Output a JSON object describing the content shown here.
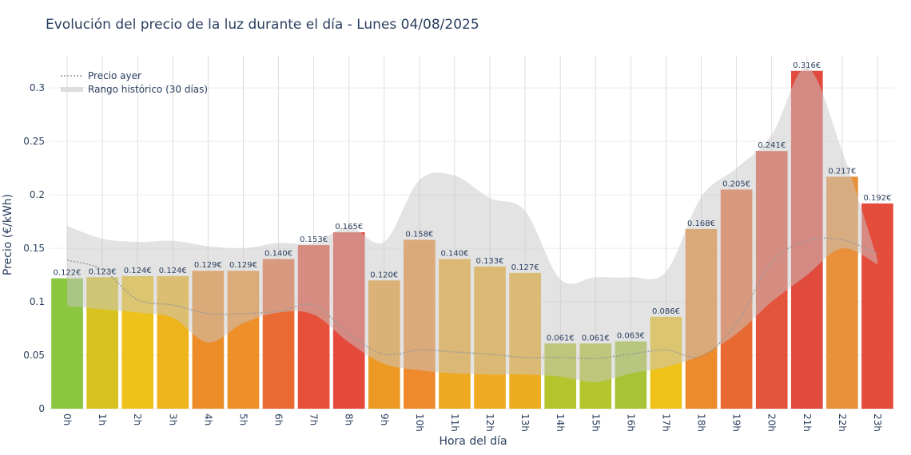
{
  "chart_data": {
    "type": "bar",
    "title": "Evolución del precio de la luz durante el día - Lunes 04/08/2025",
    "xlabel": "Hora del día",
    "ylabel": "Precio (€/kWh)",
    "ylim": [
      0,
      0.33
    ],
    "yticks": [
      "0",
      "0.05",
      "0.1",
      "0.15",
      "0.2",
      "0.25",
      "0.3"
    ],
    "grid": true,
    "legend_position": "top-left",
    "categories": [
      "0h",
      "1h",
      "2h",
      "3h",
      "4h",
      "5h",
      "6h",
      "7h",
      "8h",
      "9h",
      "10h",
      "11h",
      "12h",
      "13h",
      "14h",
      "15h",
      "16h",
      "17h",
      "18h",
      "19h",
      "20h",
      "21h",
      "22h",
      "23h"
    ],
    "values": [
      0.122,
      0.123,
      0.124,
      0.124,
      0.129,
      0.129,
      0.14,
      0.153,
      0.165,
      0.12,
      0.158,
      0.14,
      0.133,
      0.127,
      0.061,
      0.061,
      0.063,
      0.086,
      0.168,
      0.205,
      0.241,
      0.316,
      0.217,
      0.192
    ],
    "bar_labels": [
      "0.122€",
      "0.123€",
      "0.124€",
      "0.124€",
      "0.129€",
      "0.129€",
      "0.140€",
      "0.153€",
      "0.165€",
      "0.120€",
      "0.158€",
      "0.140€",
      "0.133€",
      "0.127€",
      "0.061€",
      "0.061€",
      "0.063€",
      "0.086€",
      "0.168€",
      "0.205€",
      "0.241€",
      "0.316€",
      "0.217€",
      "0.192€"
    ],
    "bar_colors": [
      "#8bc63f",
      "#d8c222",
      "#eec21a",
      "#efb41c",
      "#ed8d2a",
      "#ee8f2a",
      "#ea6a34",
      "#e7503a",
      "#e4493c",
      "#ed9a24",
      "#ee8a2d",
      "#eea923",
      "#eeab23",
      "#edad22",
      "#b5c52e",
      "#b5c52e",
      "#a8c436",
      "#f0c31a",
      "#ec8a2c",
      "#e86a33",
      "#e4533b",
      "#e04b3e",
      "#e8913a",
      "#e44c3c"
    ],
    "series": [
      {
        "name": "Precio ayer",
        "type": "line",
        "style": "dotted",
        "color": "#999999",
        "values": [
          0.139,
          0.13,
          0.102,
          0.097,
          0.089,
          0.089,
          0.091,
          0.097,
          0.07,
          0.051,
          0.055,
          0.053,
          0.051,
          0.048,
          0.048,
          0.047,
          0.051,
          0.055,
          0.049,
          0.08,
          0.137,
          0.157,
          0.158,
          0.145
        ]
      },
      {
        "name": "Rango histórico (30 días)",
        "type": "band",
        "color": "#dddddd",
        "upper": [
          0.171,
          0.159,
          0.156,
          0.157,
          0.152,
          0.15,
          0.155,
          0.155,
          0.17,
          0.156,
          0.214,
          0.218,
          0.197,
          0.185,
          0.121,
          0.123,
          0.123,
          0.128,
          0.198,
          0.225,
          0.256,
          0.319,
          0.241,
          0.14
        ],
        "lower": [
          0.096,
          0.093,
          0.09,
          0.085,
          0.062,
          0.08,
          0.09,
          0.088,
          0.062,
          0.042,
          0.036,
          0.033,
          0.032,
          0.032,
          0.03,
          0.025,
          0.033,
          0.039,
          0.05,
          0.07,
          0.1,
          0.125,
          0.15,
          0.135
        ]
      }
    ]
  }
}
